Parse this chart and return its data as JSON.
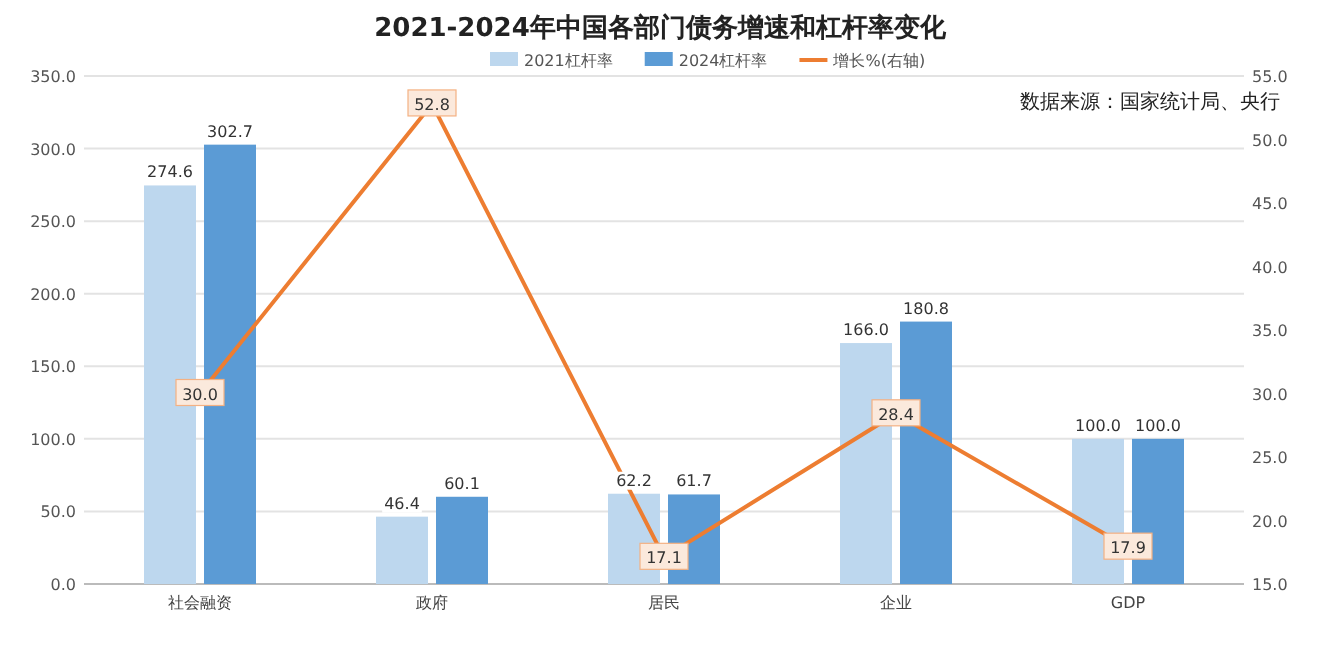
{
  "chart_data": {
    "type": "bar",
    "title": "2021-2024年中国各部门债务增速和杠杆率变化",
    "categories": [
      "社会融资",
      "政府",
      "居民",
      "企业",
      "GDP"
    ],
    "series": [
      {
        "name": "2021杠杆率",
        "color": "#bdd7ee",
        "values": [
          274.6,
          46.4,
          62.2,
          166.0,
          100.0
        ],
        "value_labels": [
          "274.6",
          "46.4",
          "62.2",
          "166.0",
          "100.0"
        ]
      },
      {
        "name": "2024杠杆率",
        "color": "#5b9bd5",
        "values": [
          302.7,
          60.1,
          61.7,
          180.8,
          100.0
        ],
        "value_labels": [
          "302.7",
          "60.1",
          "61.7",
          "180.8",
          "100.0"
        ]
      },
      {
        "name": "增长%(右轴)",
        "type": "line",
        "axis": "y2",
        "color": "#ed7d31",
        "values": [
          30.0,
          52.8,
          17.1,
          28.4,
          17.9
        ],
        "value_labels": [
          "30.0",
          "52.8",
          "17.1",
          "28.4",
          "17.9"
        ]
      }
    ],
    "ylim": [
      0,
      350
    ],
    "yticks": [
      {
        "value": 0,
        "label": "0.0"
      },
      {
        "value": 50,
        "label": "50.0"
      },
      {
        "value": 100,
        "label": "100.0"
      },
      {
        "value": 150,
        "label": "150.0"
      },
      {
        "value": 200,
        "label": "200.0"
      },
      {
        "value": 250,
        "label": "250.0"
      },
      {
        "value": 300,
        "label": "300.0"
      },
      {
        "value": 350,
        "label": "350.0"
      }
    ],
    "y2lim": [
      15,
      55
    ],
    "y2ticks": [
      {
        "value": 15,
        "label": "15.0"
      },
      {
        "value": 20,
        "label": "20.0"
      },
      {
        "value": 25,
        "label": "25.0"
      },
      {
        "value": 30,
        "label": "30.0"
      },
      {
        "value": 35,
        "label": "35.0"
      },
      {
        "value": 40,
        "label": "40.0"
      },
      {
        "value": 45,
        "label": "45.0"
      },
      {
        "value": 50,
        "label": "50.0"
      },
      {
        "value": 55,
        "label": "55.0"
      }
    ],
    "grid": "y",
    "legend": "top",
    "marker": "square",
    "line_style": "solid",
    "annotations": [
      "数据来源：国家统计局、央行"
    ]
  }
}
